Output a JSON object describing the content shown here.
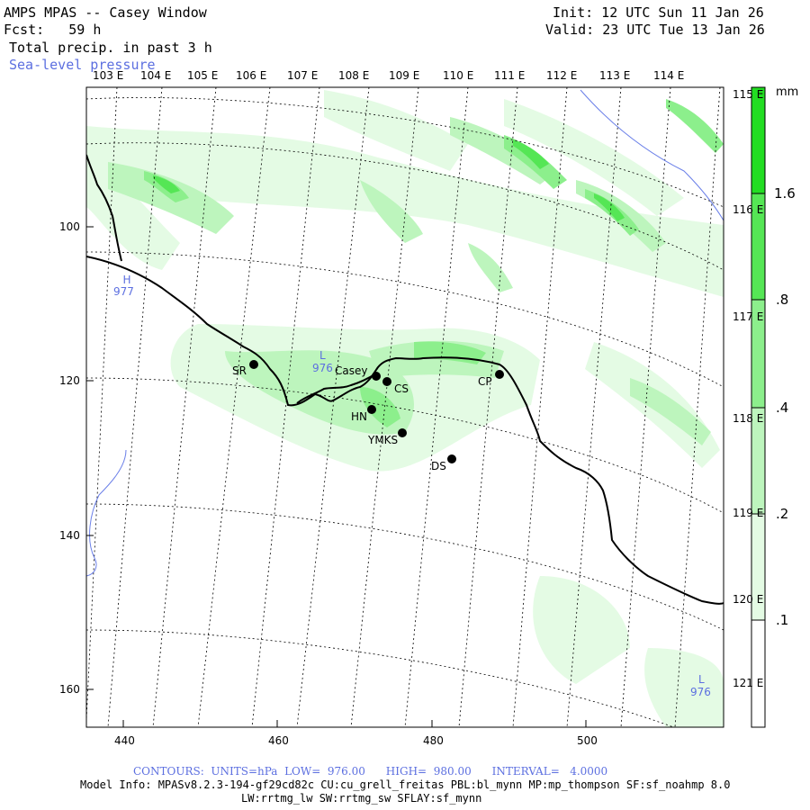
{
  "header": {
    "title": "AMPS MPAS -- Casey Window",
    "forecast": "Fcst:   59 h",
    "field": "Total precip. in past 3 h",
    "overlay": "Sea-level pressure",
    "init": "Init: 12 UTC Sun 11 Jan 26",
    "valid": "Valid: 23 UTC Tue 13 Jan 26"
  },
  "lon_labels_top": [
    "103 E",
    "104 E",
    "105 E",
    "106 E",
    "107 E",
    "108 E",
    "109 E",
    "110 E",
    "111 E",
    "112 E",
    "113 E",
    "114 E"
  ],
  "lon_labels_right": [
    "115 E",
    "116 E",
    "117 E",
    "118 E",
    "119 E",
    "120 E",
    "121 E"
  ],
  "x_ticks": [
    "440",
    "460",
    "480",
    "500"
  ],
  "y_ticks": [
    "100",
    "120",
    "140",
    "160"
  ],
  "colorbar": {
    "unit": "mm",
    "labels": [
      "1.6",
      ".8",
      ".4",
      ".2",
      ".1"
    ],
    "colors": [
      "#22dd22",
      "#55e655",
      "#8cef8c",
      "#bdf5bd",
      "#e4fbe4",
      "#ffffff"
    ]
  },
  "stations": [
    {
      "name": "SR"
    },
    {
      "name": "Casey"
    },
    {
      "name": "CS"
    },
    {
      "name": "HN"
    },
    {
      "name": "YMKS"
    },
    {
      "name": "DS"
    },
    {
      "name": "CP"
    }
  ],
  "pressure_centers": [
    {
      "type": "H",
      "value": "977"
    },
    {
      "type": "L",
      "value": "976"
    },
    {
      "type": "L",
      "value": "976"
    }
  ],
  "footer": {
    "contours": "CONTOURS:  UNITS=hPa  LOW=  976.00      HIGH=  980.00      INTERVAL=   4.0000",
    "model_info": "Model Info: MPASv8.2.3-194-gf29cd82c CU:cu_grell_freitas PBL:bl_mynn MP:mp_thompson SF:sf_noahmp 8.0",
    "model_info2": "LW:rrtmg_lw SW:rrtmg_sw SFLAY:sf_mynn"
  }
}
